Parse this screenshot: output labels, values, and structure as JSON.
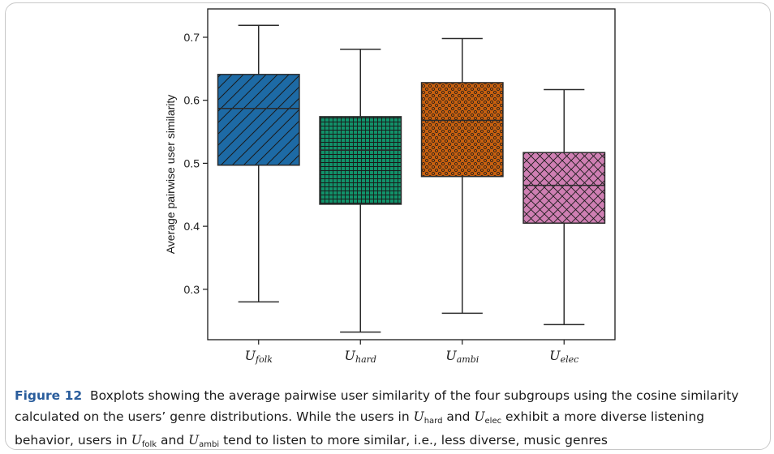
{
  "chart_data": {
    "type": "box",
    "ylabel": "Average pairwise user similarity",
    "xlabel": "",
    "ylim": [
      0.22,
      0.745
    ],
    "yticks": [
      0.3,
      0.4,
      0.5,
      0.6,
      0.7
    ],
    "ytick_labels": [
      "0.3",
      "0.4",
      "0.5",
      "0.6",
      "0.7"
    ],
    "grid": false,
    "boxes": [
      {
        "label_main": "U",
        "label_sub": "folk",
        "whisker_low": 0.28,
        "q1": 0.497,
        "median": 0.587,
        "q3": 0.641,
        "whisker_high": 0.719,
        "color": "#1d6aa5",
        "hatch": "diagonal"
      },
      {
        "label_main": "U",
        "label_sub": "hard",
        "whisker_low": 0.232,
        "q1": 0.435,
        "median": 0.521,
        "q3": 0.574,
        "whisker_high": 0.681,
        "color": "#11926a",
        "hatch": "grid"
      },
      {
        "label_main": "U",
        "label_sub": "ambi",
        "whisker_low": 0.262,
        "q1": 0.479,
        "median": 0.568,
        "q3": 0.628,
        "whisker_high": 0.698,
        "color": "#c8600f",
        "hatch": "dots"
      },
      {
        "label_main": "U",
        "label_sub": "elec",
        "whisker_low": 0.244,
        "q1": 0.405,
        "median": 0.465,
        "q3": 0.517,
        "whisker_high": 0.617,
        "color": "#cf7fb3",
        "hatch": "crosshatch"
      }
    ]
  },
  "caption": {
    "label": "Figure 12",
    "t1": "Boxplots showing the average pairwise user similarity of the four subgroups using the cosine similarity calculated on the users’ genre distributions. While the users in ",
    "u": "U",
    "s_hard": "hard",
    "t2": " and ",
    "s_elec": "elec",
    "t3": " exhibit a more diverse listening behavior, users in ",
    "s_folk": "folk",
    "t4": " and ",
    "s_ambi": "ambi",
    "t5": " tend to listen to more similar, i.e., less diverse, music genres"
  }
}
